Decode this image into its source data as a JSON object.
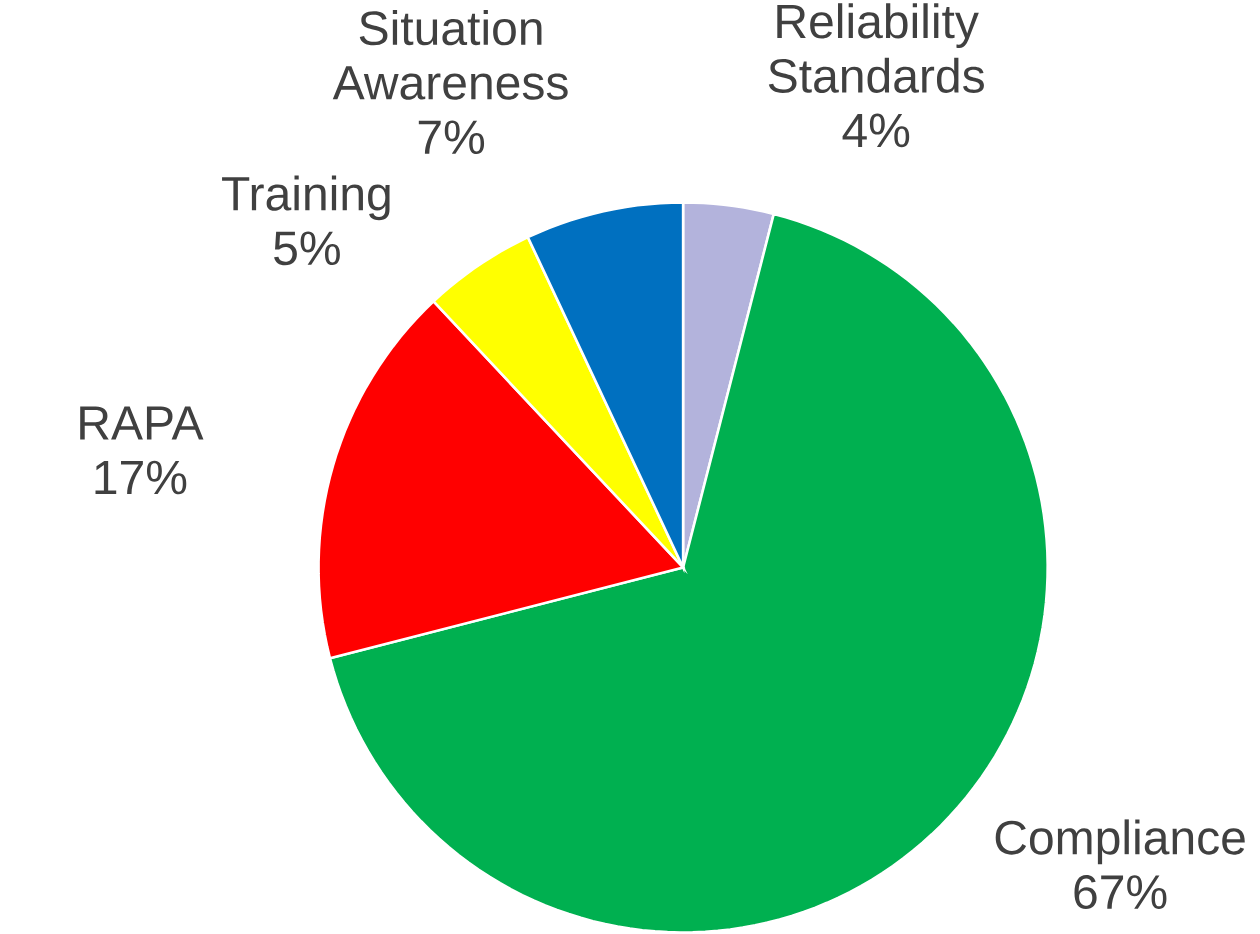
{
  "chart_data": {
    "type": "pie",
    "categories": [
      "Reliability Standards",
      "Compliance",
      "RAPA",
      "Training",
      "Situation Awareness"
    ],
    "values": [
      4,
      67,
      17,
      5,
      7
    ],
    "value_labels": [
      "4%",
      "67%",
      "17%",
      "5%",
      "7%"
    ],
    "colors": [
      "#b3b3dc",
      "#00b050",
      "#ff0000",
      "#ffff00",
      "#0070c0"
    ]
  }
}
